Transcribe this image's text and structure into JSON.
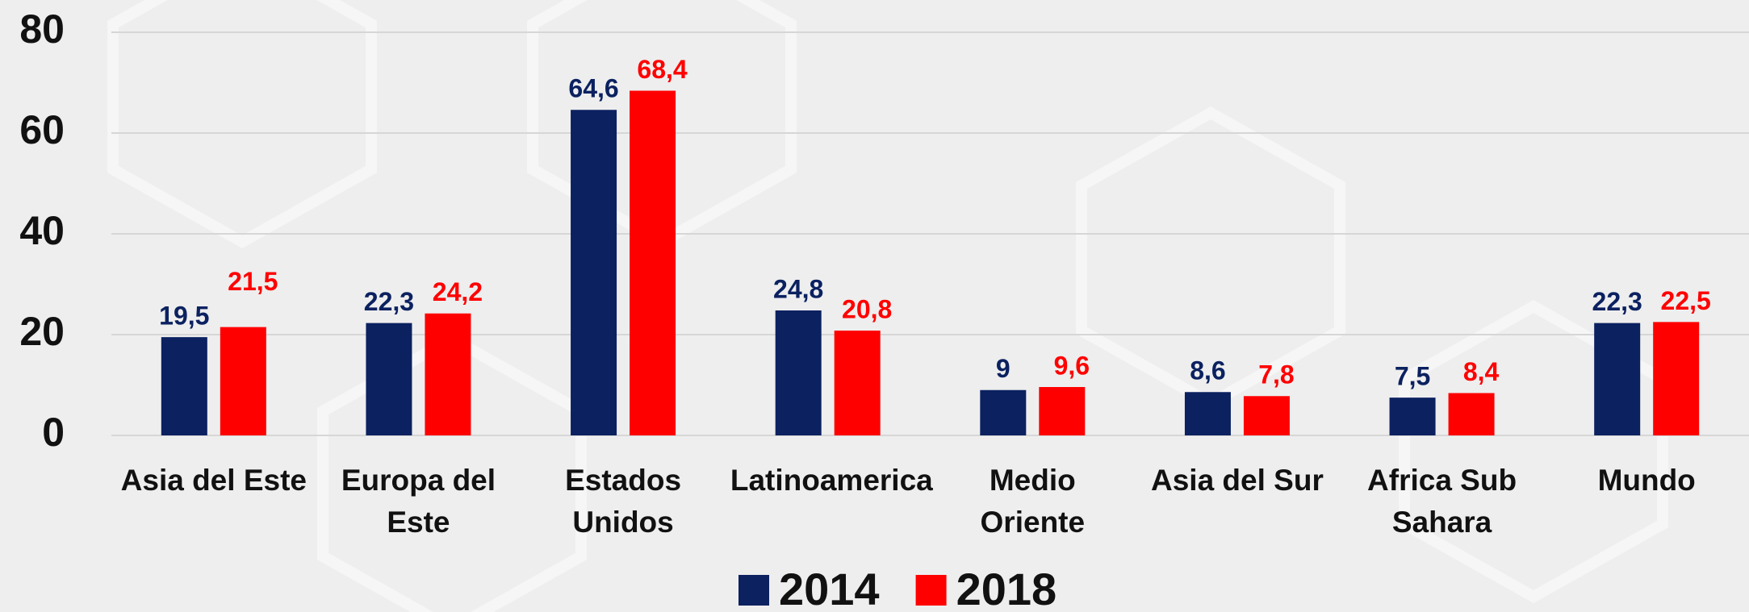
{
  "chart_data": {
    "type": "bar",
    "categories": [
      "Asia del Este",
      "Europa del Este",
      "Estados Unidos",
      "Latinoamerica",
      "Medio Oriente",
      "Asia del Sur",
      "Africa Sub Sahara",
      "Mundo"
    ],
    "series": [
      {
        "name": "2014",
        "color": "#0b2160",
        "values": [
          19.5,
          22.3,
          64.6,
          24.8,
          9,
          8.6,
          7.5,
          22.3
        ],
        "value_labels": [
          "19,5",
          "22,3",
          "64,6",
          "24,8",
          "9",
          "8,6",
          "7,5",
          "22,3"
        ]
      },
      {
        "name": "2018",
        "color": "#ff0000",
        "values": [
          21.5,
          24.2,
          68.4,
          20.8,
          9.6,
          7.8,
          8.4,
          22.5
        ],
        "value_labels": [
          "21,5",
          "24,2",
          "68,4",
          "20,8",
          "9,6",
          "7,8",
          "8,4",
          "22,5"
        ]
      }
    ],
    "ylim": [
      0,
      80
    ],
    "yticks": [
      0,
      20,
      40,
      60,
      80
    ],
    "grid": true,
    "legend": "bottom"
  }
}
